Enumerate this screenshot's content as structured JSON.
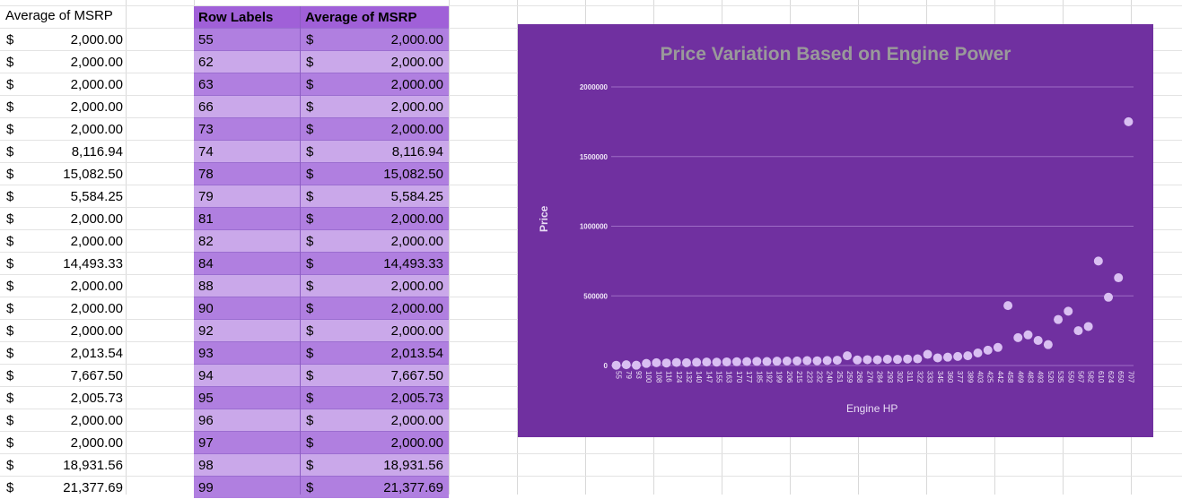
{
  "left_column": {
    "header": "Average of MSRP",
    "currency": "$",
    "values": [
      "2,000.00",
      "2,000.00",
      "2,000.00",
      "2,000.00",
      "2,000.00",
      "8,116.94",
      "15,082.50",
      "5,584.25",
      "2,000.00",
      "2,000.00",
      "14,493.33",
      "2,000.00",
      "2,000.00",
      "2,000.00",
      "2,013.54",
      "7,667.50",
      "2,005.73",
      "2,000.00",
      "2,000.00",
      "18,931.56",
      "21,377.69"
    ]
  },
  "pivot": {
    "header_row_labels": "Row Labels",
    "header_avg": "Average of MSRP",
    "currency": "$",
    "rows": [
      {
        "label": "55",
        "value": "2,000.00"
      },
      {
        "label": "62",
        "value": "2,000.00"
      },
      {
        "label": "63",
        "value": "2,000.00"
      },
      {
        "label": "66",
        "value": "2,000.00"
      },
      {
        "label": "73",
        "value": "2,000.00"
      },
      {
        "label": "74",
        "value": "8,116.94"
      },
      {
        "label": "78",
        "value": "15,082.50"
      },
      {
        "label": "79",
        "value": "5,584.25"
      },
      {
        "label": "81",
        "value": "2,000.00"
      },
      {
        "label": "82",
        "value": "2,000.00"
      },
      {
        "label": "84",
        "value": "14,493.33"
      },
      {
        "label": "88",
        "value": "2,000.00"
      },
      {
        "label": "90",
        "value": "2,000.00"
      },
      {
        "label": "92",
        "value": "2,000.00"
      },
      {
        "label": "93",
        "value": "2,013.54"
      },
      {
        "label": "94",
        "value": "7,667.50"
      },
      {
        "label": "95",
        "value": "2,005.73"
      },
      {
        "label": "96",
        "value": "2,000.00"
      },
      {
        "label": "97",
        "value": "2,000.00"
      },
      {
        "label": "98",
        "value": "18,931.56"
      },
      {
        "label": "99",
        "value": "21,377.69"
      }
    ]
  },
  "colors": {
    "pivot_header": "#a060d8",
    "pivot_dark": "#b07fe0",
    "pivot_light": "#caa8ea",
    "chart_bg": "#7030a0",
    "marker": "#d9bff2"
  },
  "chart_data": {
    "type": "scatter",
    "title": "Price Variation Based on Engine Power",
    "xlabel": "Engine HP",
    "ylabel": "Price",
    "ylim": [
      0,
      2000000
    ],
    "yticks": [
      0,
      500000,
      1000000,
      1500000,
      2000000
    ],
    "grid": true,
    "xtick_labels": [
      "55",
      "79",
      "93",
      "100",
      "108",
      "116",
      "124",
      "132",
      "140",
      "147",
      "155",
      "163",
      "170",
      "177",
      "185",
      "192",
      "199",
      "206",
      "215",
      "223",
      "232",
      "240",
      "251",
      "259",
      "268",
      "276",
      "284",
      "293",
      "302",
      "311",
      "322",
      "333",
      "345",
      "360",
      "377",
      "389",
      "403",
      "425",
      "442",
      "458",
      "469",
      "483",
      "493",
      "520",
      "535",
      "550",
      "567",
      "582",
      "610",
      "624",
      "650",
      "707"
    ],
    "points": [
      {
        "x": 55,
        "y": 2000
      },
      {
        "x": 79,
        "y": 5584
      },
      {
        "x": 93,
        "y": 2013
      },
      {
        "x": 100,
        "y": 15000
      },
      {
        "x": 108,
        "y": 20000
      },
      {
        "x": 116,
        "y": 18000
      },
      {
        "x": 124,
        "y": 22000
      },
      {
        "x": 132,
        "y": 20000
      },
      {
        "x": 140,
        "y": 23000
      },
      {
        "x": 147,
        "y": 25000
      },
      {
        "x": 155,
        "y": 24000
      },
      {
        "x": 163,
        "y": 26000
      },
      {
        "x": 170,
        "y": 27000
      },
      {
        "x": 177,
        "y": 28000
      },
      {
        "x": 185,
        "y": 30000
      },
      {
        "x": 192,
        "y": 29000
      },
      {
        "x": 199,
        "y": 31000
      },
      {
        "x": 206,
        "y": 32000
      },
      {
        "x": 215,
        "y": 33000
      },
      {
        "x": 223,
        "y": 35000
      },
      {
        "x": 232,
        "y": 34000
      },
      {
        "x": 240,
        "y": 36000
      },
      {
        "x": 251,
        "y": 38000
      },
      {
        "x": 259,
        "y": 70000
      },
      {
        "x": 268,
        "y": 40000
      },
      {
        "x": 276,
        "y": 42000
      },
      {
        "x": 284,
        "y": 41000
      },
      {
        "x": 293,
        "y": 45000
      },
      {
        "x": 302,
        "y": 44000
      },
      {
        "x": 311,
        "y": 47000
      },
      {
        "x": 322,
        "y": 48000
      },
      {
        "x": 333,
        "y": 80000
      },
      {
        "x": 345,
        "y": 55000
      },
      {
        "x": 360,
        "y": 60000
      },
      {
        "x": 377,
        "y": 65000
      },
      {
        "x": 389,
        "y": 70000
      },
      {
        "x": 403,
        "y": 90000
      },
      {
        "x": 425,
        "y": 110000
      },
      {
        "x": 442,
        "y": 130000
      },
      {
        "x": 458,
        "y": 430000
      },
      {
        "x": 469,
        "y": 200000
      },
      {
        "x": 483,
        "y": 220000
      },
      {
        "x": 493,
        "y": 180000
      },
      {
        "x": 520,
        "y": 150000
      },
      {
        "x": 535,
        "y": 330000
      },
      {
        "x": 550,
        "y": 390000
      },
      {
        "x": 567,
        "y": 250000
      },
      {
        "x": 582,
        "y": 280000
      },
      {
        "x": 610,
        "y": 750000
      },
      {
        "x": 624,
        "y": 490000
      },
      {
        "x": 650,
        "y": 630000
      },
      {
        "x": 707,
        "y": 1750000
      }
    ]
  }
}
